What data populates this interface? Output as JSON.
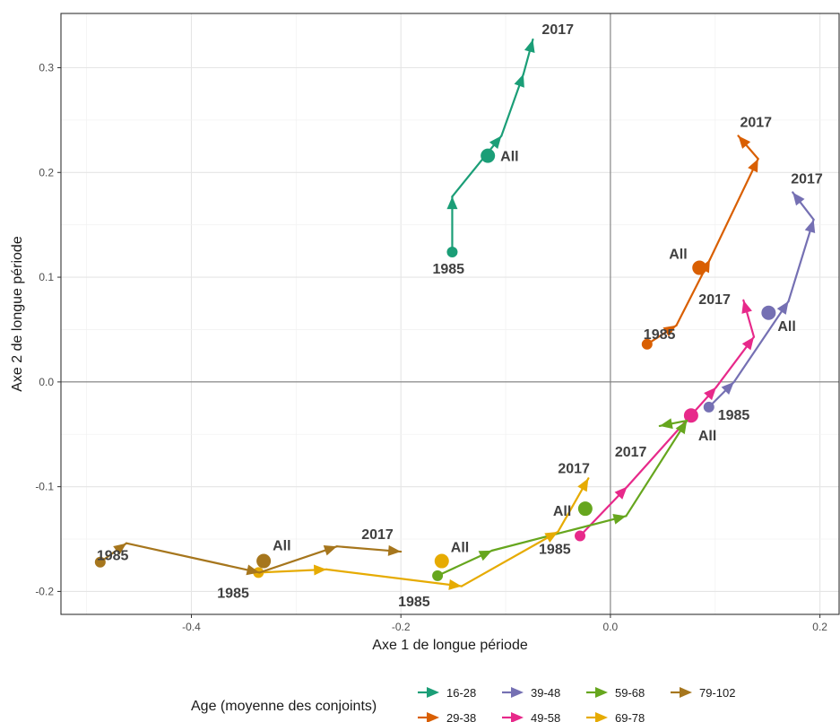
{
  "chart_data": {
    "type": "scatter",
    "xlabel": "Axe 1 de longue période",
    "ylabel": "Axe 2 de longue période",
    "xlim": [
      -0.5245,
      0.2183
    ],
    "ylim": [
      -0.2219,
      0.3518
    ],
    "x_ticks": [
      -0.4,
      -0.2,
      0.0,
      0.2
    ],
    "x_tick_labels": [
      "-0.4",
      "-0.2",
      "0.0",
      "0.2"
    ],
    "y_ticks": [
      -0.2,
      -0.1,
      0.0,
      0.1,
      0.2,
      0.3
    ],
    "y_tick_labels": [
      "-0.2",
      "-0.1",
      "0.0",
      "0.1",
      "0.2",
      "0.3"
    ],
    "grid": true,
    "reference_lines": {
      "x": 0,
      "y": 0
    },
    "legend": {
      "title": "Age (moyenne des conjoints)",
      "position": "bottom",
      "entries": [
        "16-28",
        "29-38",
        "39-48",
        "49-58",
        "59-68",
        "69-78",
        "79-102"
      ]
    },
    "series": [
      {
        "name": "16-28",
        "color": "#1b9e77",
        "path": [
          [
            -0.151,
            0.124
          ],
          [
            -0.151,
            0.177
          ],
          [
            -0.104,
            0.235
          ],
          [
            -0.083,
            0.294
          ],
          [
            -0.074,
            0.327
          ]
        ],
        "all_point": [
          -0.117,
          0.216
        ],
        "start_label": "1985",
        "end_label": "2017",
        "all_label": "All"
      },
      {
        "name": "29-38",
        "color": "#d95f02",
        "path": [
          [
            0.035,
            0.036
          ],
          [
            0.063,
            0.054
          ],
          [
            0.095,
            0.117
          ],
          [
            0.141,
            0.213
          ],
          [
            0.122,
            0.235
          ]
        ],
        "all_point": [
          0.085,
          0.109
        ],
        "start_label": "1985",
        "end_label": "2017",
        "all_label": "All"
      },
      {
        "name": "39-48",
        "color": "#7570b3",
        "path": [
          [
            0.094,
            -0.024
          ],
          [
            0.118,
            0.0
          ],
          [
            0.17,
            0.077
          ],
          [
            0.194,
            0.155
          ],
          [
            0.174,
            0.181
          ]
        ],
        "all_point": [
          0.151,
          0.066
        ],
        "start_label": "1985",
        "end_label": "2017",
        "all_label": "All"
      },
      {
        "name": "49-58",
        "color": "#e7298a",
        "path": [
          [
            -0.029,
            -0.147
          ],
          [
            0.016,
            -0.1
          ],
          [
            0.101,
            -0.005
          ],
          [
            0.137,
            0.043
          ],
          [
            0.127,
            0.078
          ]
        ],
        "all_point": [
          0.077,
          -0.032
        ],
        "start_label": "1985",
        "end_label": "2017",
        "all_label": "All"
      },
      {
        "name": "59-68",
        "color": "#66a61e",
        "path": [
          [
            -0.165,
            -0.185
          ],
          [
            -0.113,
            -0.161
          ],
          [
            0.015,
            -0.128
          ],
          [
            0.073,
            -0.037
          ],
          [
            0.047,
            -0.042
          ]
        ],
        "all_point": [
          -0.024,
          -0.121
        ],
        "start_label": "1985",
        "end_label": "2017",
        "all_label": "All"
      },
      {
        "name": "69-78",
        "color": "#e6ab02",
        "path": [
          [
            -0.336,
            -0.182
          ],
          [
            -0.271,
            -0.179
          ],
          [
            -0.142,
            -0.195
          ],
          [
            -0.05,
            -0.143
          ],
          [
            -0.021,
            -0.092
          ]
        ],
        "all_point": [
          -0.161,
          -0.171
        ],
        "start_label": "1985",
        "end_label": "2017",
        "all_label": "All"
      },
      {
        "name": "79-102",
        "color": "#a6761d",
        "path": [
          [
            -0.487,
            -0.172
          ],
          [
            -0.462,
            -0.154
          ],
          [
            -0.335,
            -0.182
          ],
          [
            -0.261,
            -0.157
          ],
          [
            -0.2,
            -0.162
          ]
        ],
        "all_point": [
          -0.331,
          -0.171
        ],
        "start_label": "1985",
        "end_label": "2017",
        "all_label": "All"
      }
    ]
  }
}
